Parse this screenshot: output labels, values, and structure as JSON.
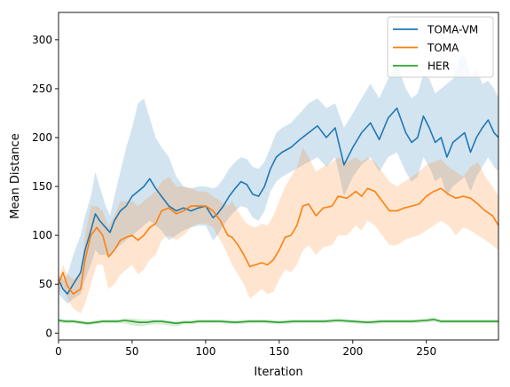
{
  "chart_data": {
    "type": "line",
    "xlabel": "Iteration",
    "ylabel": "Mean Distance",
    "xlim": [
      0,
      299
    ],
    "ylim": [
      -7,
      328
    ],
    "xticks": [
      0,
      50,
      100,
      150,
      200,
      250
    ],
    "yticks": [
      0,
      50,
      100,
      150,
      200,
      250,
      300
    ],
    "legend_position": "top-right",
    "grid": false,
    "series": [
      {
        "name": "TOMA-VM",
        "color": "#1f77b4",
        "x": [
          0,
          3,
          6,
          10,
          15,
          18,
          22,
          25,
          28,
          32,
          35,
          38,
          42,
          46,
          50,
          54,
          58,
          62,
          66,
          70,
          75,
          80,
          85,
          90,
          95,
          100,
          105,
          108,
          112,
          116,
          120,
          124,
          128,
          132,
          136,
          140,
          144,
          148,
          152,
          158,
          164,
          170,
          176,
          182,
          188,
          194,
          200,
          206,
          212,
          218,
          224,
          230,
          236,
          240,
          244,
          248,
          252,
          256,
          260,
          264,
          268,
          272,
          276,
          280,
          284,
          288,
          292,
          296,
          299
        ],
        "y": [
          55,
          45,
          40,
          50,
          62,
          85,
          105,
          122,
          115,
          108,
          103,
          115,
          125,
          130,
          140,
          145,
          150,
          158,
          148,
          140,
          130,
          125,
          128,
          125,
          128,
          130,
          118,
          122,
          130,
          140,
          148,
          155,
          152,
          142,
          140,
          150,
          168,
          180,
          185,
          190,
          198,
          205,
          212,
          200,
          210,
          172,
          190,
          205,
          215,
          198,
          220,
          230,
          205,
          195,
          200,
          222,
          210,
          195,
          200,
          180,
          195,
          200,
          205,
          185,
          200,
          210,
          218,
          205,
          200
        ],
        "band_upper": [
          60,
          55,
          60,
          80,
          100,
          120,
          140,
          165,
          150,
          130,
          120,
          140,
          165,
          190,
          210,
          235,
          240,
          220,
          200,
          190,
          180,
          160,
          150,
          148,
          150,
          150,
          148,
          150,
          158,
          168,
          175,
          180,
          178,
          170,
          168,
          175,
          190,
          205,
          210,
          215,
          225,
          235,
          240,
          230,
          235,
          210,
          225,
          240,
          255,
          240,
          260,
          275,
          250,
          240,
          245,
          265,
          260,
          245,
          250,
          255,
          260,
          280,
          285,
          262,
          270,
          255,
          258,
          250,
          240
        ],
        "band_lower": [
          40,
          35,
          30,
          35,
          40,
          55,
          70,
          85,
          80,
          80,
          80,
          85,
          90,
          95,
          100,
          105,
          110,
          115,
          110,
          105,
          95,
          100,
          105,
          108,
          110,
          110,
          95,
          100,
          110,
          118,
          125,
          130,
          128,
          118,
          115,
          125,
          145,
          155,
          160,
          165,
          170,
          175,
          180,
          170,
          180,
          140,
          160,
          172,
          180,
          165,
          180,
          185,
          165,
          155,
          160,
          180,
          170,
          155,
          160,
          140,
          150,
          155,
          160,
          145,
          160,
          170,
          180,
          170,
          165
        ]
      },
      {
        "name": "TOMA",
        "color": "#ff7f0e",
        "x": [
          0,
          3,
          6,
          10,
          15,
          18,
          22,
          26,
          30,
          34,
          38,
          42,
          46,
          50,
          54,
          58,
          62,
          66,
          70,
          75,
          80,
          85,
          90,
          95,
          100,
          105,
          110,
          115,
          118,
          122,
          126,
          130,
          134,
          138,
          142,
          146,
          150,
          154,
          158,
          162,
          166,
          170,
          175,
          180,
          186,
          190,
          196,
          202,
          206,
          210,
          215,
          220,
          225,
          230,
          235,
          240,
          245,
          250,
          255,
          260,
          265,
          270,
          275,
          280,
          285,
          290,
          295,
          299
        ],
        "y": [
          50,
          62,
          48,
          40,
          45,
          75,
          100,
          108,
          100,
          78,
          85,
          95,
          98,
          100,
          95,
          100,
          108,
          112,
          125,
          128,
          122,
          125,
          130,
          130,
          130,
          125,
          115,
          100,
          98,
          90,
          80,
          68,
          70,
          72,
          70,
          75,
          85,
          98,
          100,
          110,
          130,
          132,
          120,
          128,
          130,
          140,
          138,
          145,
          140,
          148,
          145,
          135,
          125,
          125,
          128,
          130,
          132,
          140,
          145,
          148,
          142,
          138,
          140,
          138,
          132,
          125,
          120,
          110
        ],
        "band_upper": [
          55,
          70,
          60,
          55,
          60,
          100,
          130,
          130,
          125,
          110,
          120,
          135,
          135,
          135,
          130,
          135,
          140,
          145,
          155,
          160,
          150,
          150,
          148,
          145,
          145,
          140,
          135,
          130,
          135,
          125,
          115,
          110,
          108,
          112,
          110,
          120,
          135,
          150,
          160,
          170,
          190,
          180,
          165,
          170,
          175,
          180,
          175,
          180,
          175,
          180,
          175,
          165,
          155,
          150,
          155,
          160,
          165,
          172,
          175,
          178,
          170,
          165,
          160,
          170,
          175,
          160,
          150,
          140
        ],
        "band_lower": [
          40,
          50,
          35,
          25,
          20,
          30,
          50,
          70,
          70,
          45,
          50,
          60,
          65,
          70,
          60,
          65,
          75,
          80,
          95,
          100,
          95,
          100,
          108,
          112,
          112,
          108,
          95,
          80,
          70,
          60,
          50,
          35,
          40,
          45,
          40,
          42,
          55,
          65,
          62,
          70,
          85,
          90,
          80,
          88,
          90,
          100,
          100,
          110,
          105,
          115,
          110,
          100,
          90,
          90,
          95,
          98,
          100,
          105,
          110,
          115,
          110,
          100,
          108,
          105,
          100,
          95,
          90,
          85
        ]
      },
      {
        "name": "HER",
        "color": "#2ca02c",
        "x": [
          0,
          5,
          10,
          15,
          20,
          25,
          30,
          35,
          40,
          45,
          50,
          55,
          60,
          65,
          70,
          75,
          80,
          85,
          90,
          95,
          100,
          110,
          120,
          130,
          140,
          150,
          160,
          170,
          180,
          190,
          200,
          210,
          220,
          230,
          240,
          250,
          255,
          260,
          270,
          280,
          290,
          299
        ],
        "y": [
          13,
          12,
          12,
          11,
          10,
          11,
          12,
          12,
          12,
          13,
          12,
          11,
          11,
          12,
          12,
          11,
          10,
          11,
          11,
          12,
          12,
          12,
          11,
          12,
          12,
          11,
          12,
          12,
          12,
          13,
          12,
          11,
          12,
          12,
          12,
          13,
          14,
          12,
          12,
          12,
          12,
          12
        ],
        "band_upper": [
          15,
          14,
          14,
          13,
          12,
          13,
          14,
          14,
          14,
          15,
          15,
          14,
          14,
          14,
          14,
          13,
          12,
          13,
          13,
          14,
          14,
          14,
          13,
          14,
          14,
          13,
          14,
          14,
          14,
          15,
          14,
          13,
          14,
          14,
          14,
          15,
          16,
          14,
          14,
          14,
          14,
          14
        ],
        "band_lower": [
          11,
          10,
          10,
          9,
          8,
          9,
          10,
          10,
          10,
          10,
          8,
          7,
          8,
          9,
          9,
          8,
          7,
          9,
          9,
          10,
          10,
          10,
          9,
          10,
          10,
          9,
          10,
          10,
          10,
          11,
          10,
          9,
          10,
          10,
          10,
          11,
          12,
          10,
          10,
          10,
          10,
          10
        ]
      }
    ]
  }
}
